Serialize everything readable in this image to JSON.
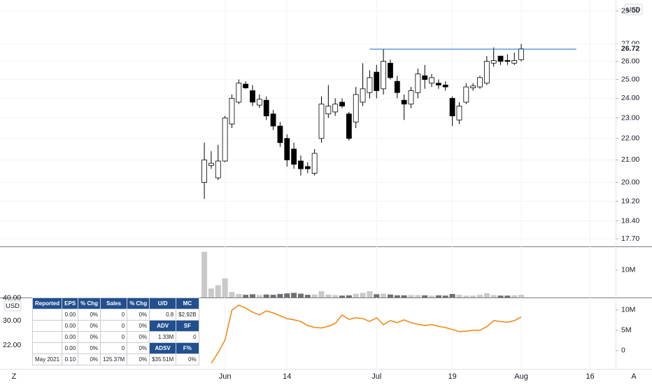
{
  "chart_data": [
    {
      "type": "candlestick",
      "xlim": [
        -25.8,
        59.7
      ],
      "ylim": [
        17.41,
        29.7
      ],
      "log": true,
      "grid": true,
      "yticks": [
        {
          "value": 29,
          "label": "29.00"
        },
        {
          "value": 27,
          "label": "27.00"
        },
        {
          "value": 26,
          "label": "26.00"
        },
        {
          "value": 25,
          "label": "25.00"
        },
        {
          "value": 24,
          "label": "24.00"
        },
        {
          "value": 23,
          "label": "23.00"
        },
        {
          "value": 22,
          "label": "22.00"
        },
        {
          "value": 21,
          "label": "21.00"
        },
        {
          "value": 20,
          "label": "20.00"
        },
        {
          "value": 19.2,
          "label": "19.20"
        },
        {
          "value": 18.4,
          "label": "18.40"
        },
        {
          "value": 17.7,
          "label": "17.70"
        }
      ],
      "currency": "USD",
      "up_color": "#ffffff",
      "down_color": "#000000",
      "wick_color": "#000000",
      "open": [
        20.0,
        20.75,
        20.2,
        20.95,
        22.7,
        23.8,
        24.75,
        24.4,
        23.65,
        23.9,
        23.2,
        22.6,
        22.0,
        21.5,
        20.95,
        20.7,
        20.4,
        22.0,
        23.2,
        23.3,
        23.8,
        23.2,
        22.8,
        23.8,
        24.3,
        25.4,
        24.5,
        25.9,
        24.9,
        23.9,
        23.7,
        24.3,
        25.2,
        24.8,
        24.8,
        24.7,
        24.0,
        22.9,
        23.8,
        24.55,
        24.6,
        24.8,
        25.9,
        26.3,
        26.05,
        25.9,
        26.1
      ],
      "high": [
        21.8,
        21.4,
        21.7,
        23.1,
        24.2,
        25.0,
        24.9,
        24.7,
        24.2,
        24.1,
        23.4,
        22.8,
        22.2,
        21.8,
        21.2,
        20.9,
        21.5,
        24.1,
        24.7,
        24.0,
        24.0,
        23.3,
        24.6,
        25.9,
        25.5,
        25.8,
        26.7,
        26.1,
        25.2,
        24.2,
        24.6,
        25.6,
        25.8,
        25.3,
        25.0,
        24.9,
        24.1,
        23.8,
        24.8,
        24.8,
        25.2,
        26.3,
        26.8,
        26.3,
        26.4,
        26.5,
        27.0
      ],
      "low": [
        19.3,
        20.6,
        20.1,
        20.9,
        22.5,
        23.7,
        24.5,
        23.6,
        23.5,
        22.9,
        22.4,
        21.6,
        20.7,
        20.6,
        20.3,
        20.4,
        20.3,
        21.8,
        23.0,
        23.1,
        23.5,
        21.9,
        22.5,
        23.6,
        24.0,
        24.0,
        24.2,
        25.0,
        24.0,
        22.9,
        23.5,
        24.0,
        24.5,
        24.6,
        24.5,
        24.4,
        22.6,
        22.7,
        23.7,
        24.4,
        24.5,
        24.7,
        25.7,
        25.8,
        25.8,
        25.8,
        26.0
      ],
      "close": [
        21.0,
        20.85,
        20.95,
        23.0,
        24.0,
        24.8,
        24.55,
        23.8,
        23.95,
        23.1,
        22.6,
        21.8,
        21.0,
        20.8,
        20.6,
        20.6,
        21.3,
        23.7,
        23.6,
        23.7,
        23.6,
        22.0,
        24.2,
        24.5,
        25.1,
        24.4,
        26.0,
        25.1,
        24.3,
        23.7,
        24.4,
        25.3,
        25.0,
        25.1,
        24.7,
        24.6,
        23.1,
        23.6,
        24.6,
        24.65,
        25.1,
        26.0,
        26.05,
        26.0,
        26.0,
        26.05,
        26.72
      ],
      "hline": {
        "value": 26.7,
        "start": 24,
        "end": 54,
        "color": "#2a7fd4"
      }
    },
    {
      "type": "bar",
      "xlim": [
        -25.8,
        59.7
      ],
      "ylim": [
        0,
        18700000
      ],
      "yticks": [
        {
          "value": 10000000,
          "label": "10M"
        }
      ],
      "up_color": "#c9c9c9",
      "down_color": "#707070",
      "values": [
        16700000,
        3300000,
        4500000,
        7000000,
        2000000,
        1300000,
        1000000,
        1200000,
        900000,
        1100000,
        1000000,
        1300000,
        1500000,
        1700000,
        1400000,
        1000000,
        1100000,
        2300000,
        1100000,
        900000,
        700000,
        800000,
        1400000,
        1700000,
        2300000,
        1200000,
        1400000,
        1100000,
        800000,
        800000,
        900000,
        900000,
        800000,
        700000,
        800000,
        700000,
        1300000,
        1000000,
        700000,
        700000,
        1000000,
        1600000,
        900000,
        700000,
        700000,
        800000,
        1000000
      ]
    },
    {
      "type": "line",
      "xlim": [
        -25.8,
        59.7
      ],
      "ylim": [
        -4500000,
        13100000
      ],
      "yticks": [
        0,
        {
          "value": 5000000,
          "label": "5M"
        },
        {
          "value": 10000000,
          "label": "10M"
        }
      ],
      "y2lim": [
        16.3,
        40.3
      ],
      "y2log": true,
      "y2ticks": [
        {
          "value": 40,
          "label": "40.00"
        },
        {
          "value": 30,
          "label": "30.00"
        },
        {
          "value": 22,
          "label": "22.00"
        }
      ],
      "y2currency": "USD",
      "color": "#f0850f",
      "values": [
        null,
        -3100000,
        -500000,
        2600000,
        10000000,
        11200000,
        10500000,
        9500000,
        8800000,
        9800000,
        9300000,
        8600000,
        7900000,
        7600000,
        7200000,
        6200000,
        5700000,
        5600000,
        6000000,
        6700000,
        8800000,
        7700000,
        8100000,
        7900000,
        7200000,
        8100000,
        6400000,
        7400000,
        6900000,
        7600000,
        6900000,
        6500000,
        6200000,
        6400000,
        6000000,
        5700000,
        5200000,
        4700000,
        4800000,
        5000000,
        5000000,
        5900000,
        7400000,
        7200000,
        7000000,
        7400000,
        8300000
      ],
      "xticks": [
        {
          "value": 3,
          "label": "Jun"
        },
        {
          "value": 12,
          "label": "14"
        },
        {
          "value": 25,
          "label": "Jul"
        },
        {
          "value": 36,
          "label": "19"
        },
        {
          "value": 46,
          "label": "Aug"
        },
        {
          "value": 56,
          "label": "16"
        }
      ]
    }
  ],
  "table": {
    "header": [
      "Reported",
      "EPS",
      "% Chg",
      "Sales",
      "% Chg",
      "U/D",
      "MC"
    ],
    "rows": [
      [
        null,
        "0.00",
        "0%",
        "0",
        "0%",
        "0.8",
        "$2.92B"
      ],
      [
        null,
        "0.00",
        "0%",
        "0",
        "0%",
        "ADV",
        "SF"
      ],
      [
        null,
        "0.00",
        "0%",
        "0",
        "0%",
        "1.33M",
        "0"
      ],
      [
        null,
        "0.00",
        "0%",
        "0",
        "0%",
        "ADSV",
        "F%"
      ],
      [
        "May 2021",
        "0.10",
        "0%",
        "125.37M",
        "0%",
        "$35.51M",
        "0%"
      ]
    ]
  },
  "ui": {
    "left_button": "Z",
    "right_button": "A"
  }
}
